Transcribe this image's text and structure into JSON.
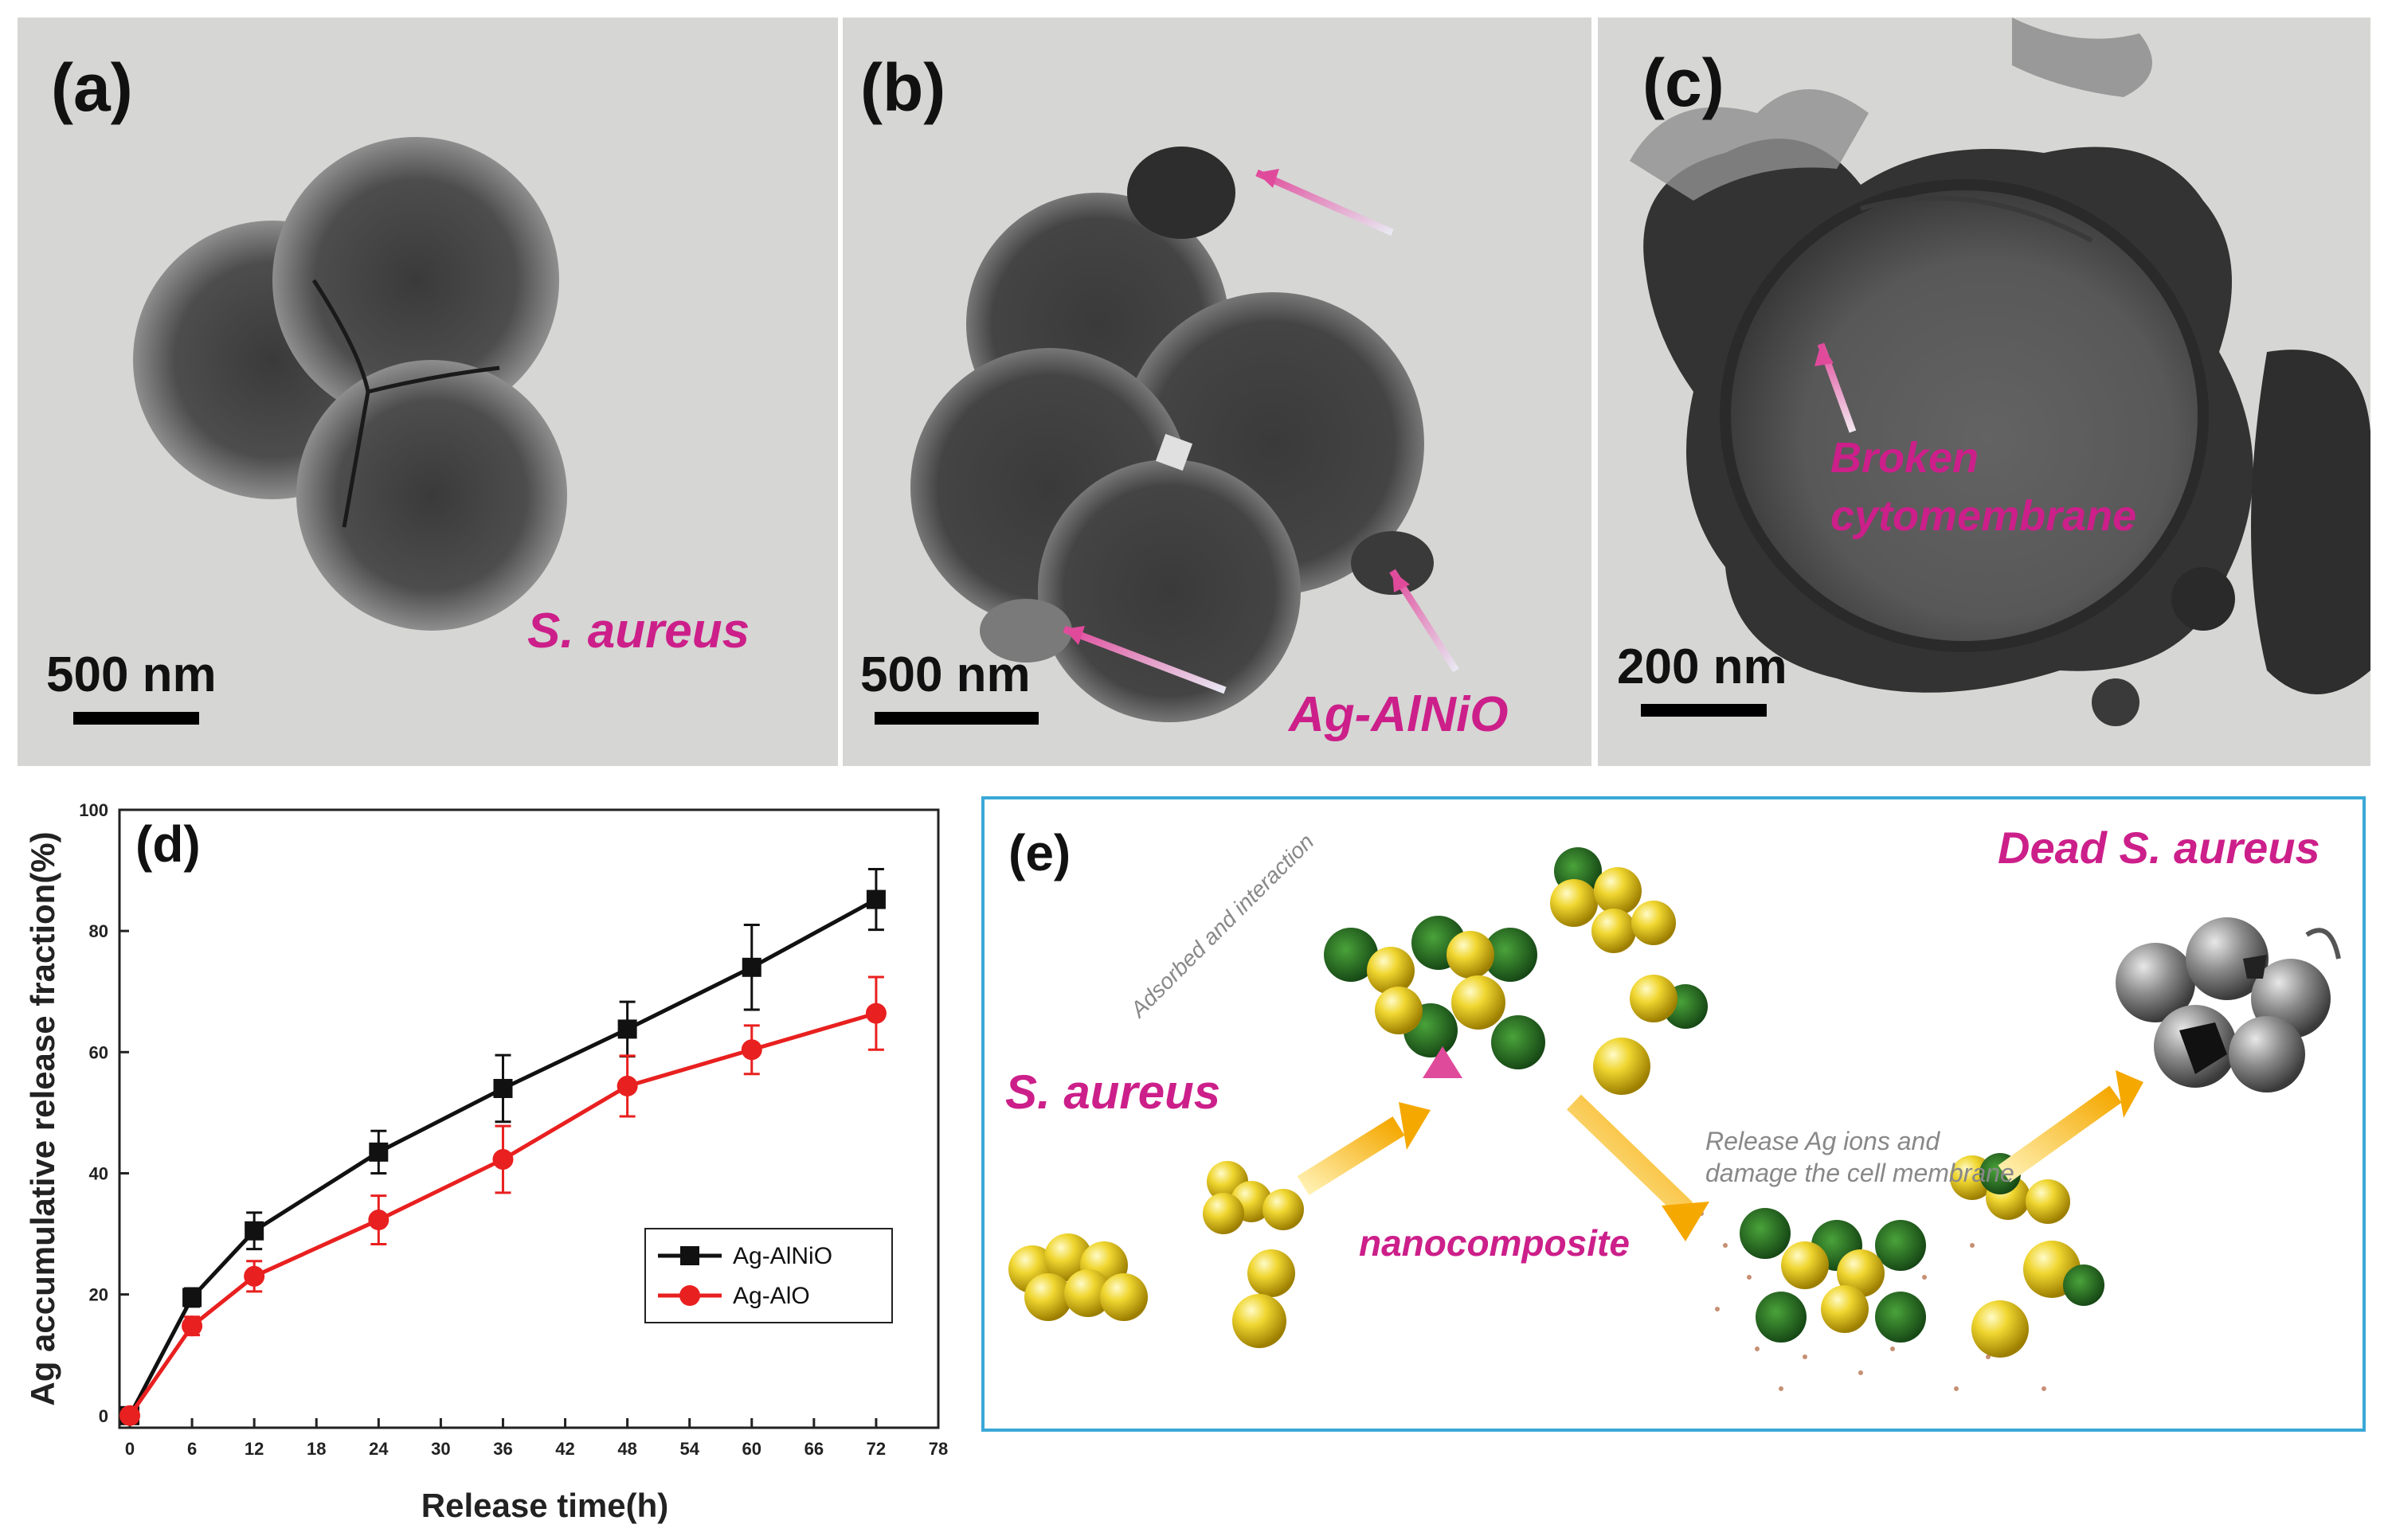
{
  "panel_a": {
    "label": "(a)",
    "scale_text": "500 nm",
    "caption": "S. aureus"
  },
  "panel_b": {
    "label": "(b)",
    "scale_text": "500 nm",
    "caption": "Ag-AlNiO"
  },
  "panel_c": {
    "label": "(c)",
    "scale_text": "200 nm",
    "caption_line1": "Broken",
    "caption_line2": "cytomembrane"
  },
  "panel_d": {
    "label": "(d)"
  },
  "panel_e": {
    "label": "(e)",
    "dead_label": "Dead S. aureus",
    "live_label": "S. aureus",
    "adsorbed_label": "Adsorbed and interaction",
    "release_line1": "Release Ag ions and",
    "release_line2": "damage the cell membrane",
    "nano_label": "nanocomposite"
  },
  "colors": {
    "magenta": "#cc1f8a",
    "series_black": "#111111",
    "series_red": "#e8201f",
    "frame_blue": "#3aa8d8"
  },
  "chart_data": {
    "type": "line",
    "title": "",
    "xlabel": "Release time(h)",
    "ylabel": "Ag  accumulative release fraction(%)",
    "xlim": [
      -1,
      78
    ],
    "ylim": [
      -2,
      100
    ],
    "xticks": [
      0,
      6,
      12,
      18,
      24,
      30,
      36,
      42,
      48,
      54,
      60,
      66,
      72,
      78
    ],
    "yticks": [
      0,
      20,
      40,
      60,
      80,
      100
    ],
    "legend_position": "bottom-right",
    "series": [
      {
        "name": "Ag-AlNiO",
        "color": "#111111",
        "marker": "square",
        "x": [
          0,
          6,
          12,
          24,
          36,
          48,
          60,
          72
        ],
        "y": [
          0,
          19.5,
          30.5,
          43.5,
          54,
          63.8,
          74,
          85.2
        ],
        "err": [
          1,
          1.5,
          3,
          3.5,
          5.5,
          4.5,
          7,
          5
        ]
      },
      {
        "name": "Ag-AlO",
        "color": "#e8201f",
        "marker": "circle",
        "x": [
          0,
          6,
          12,
          24,
          36,
          48,
          60,
          72
        ],
        "y": [
          0,
          14.8,
          23,
          32.3,
          42.3,
          54.4,
          60.4,
          66.4
        ],
        "err": [
          1,
          1.5,
          2.5,
          4,
          5.5,
          5,
          4,
          6
        ]
      }
    ]
  }
}
